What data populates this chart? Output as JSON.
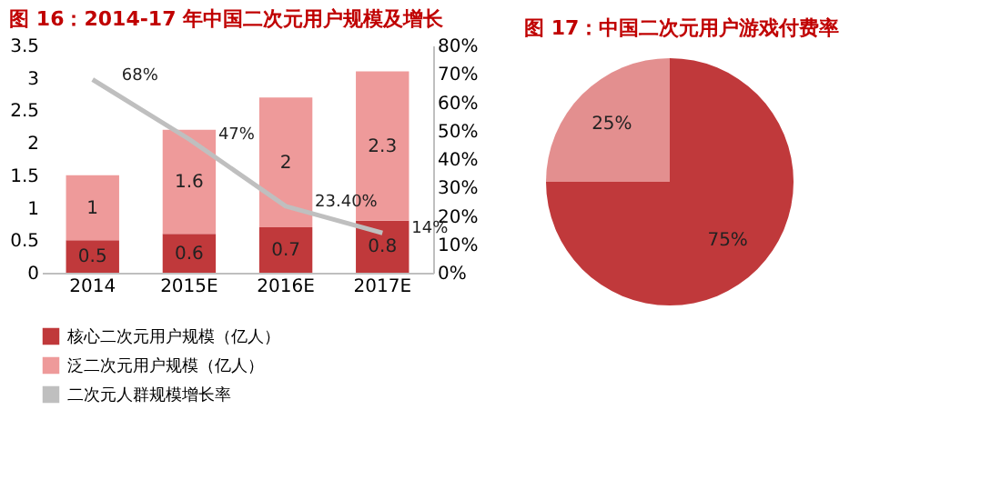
{
  "chart_data": [
    {
      "type": "bar",
      "title": "图 16：2014-17 年中国二次元用户规模及增长",
      "stacked": true,
      "data_labels": true,
      "legend": "bottom",
      "grid": false,
      "categories": [
        "2014",
        "2015E",
        "2016E",
        "2017E"
      ],
      "ylim": [
        0,
        3.5
      ],
      "yticks": [
        0,
        0.5,
        1,
        1.5,
        2,
        2.5,
        3,
        3.5
      ],
      "y2lim": [
        0,
        80
      ],
      "y2ticks": [
        {
          "value": 0,
          "label": "0%"
        },
        {
          "value": 10,
          "label": "10%"
        },
        {
          "value": 20,
          "label": "20%"
        },
        {
          "value": 30,
          "label": "30%"
        },
        {
          "value": 40,
          "label": "40%"
        },
        {
          "value": 50,
          "label": "50%"
        },
        {
          "value": 60,
          "label": "60%"
        },
        {
          "value": 70,
          "label": "70%"
        },
        {
          "value": 80,
          "label": "80%"
        }
      ],
      "series": [
        {
          "name": "核心二次元用户规模（亿人）",
          "color": "#c0393b",
          "values": [
            0.5,
            0.6,
            0.7,
            0.8
          ]
        },
        {
          "name": "泛二次元用户规模（亿人）",
          "color": "#ee9a9a",
          "values": [
            1,
            1.6,
            2,
            2.3
          ]
        },
        {
          "name": "二次元人群规模增长率",
          "type": "line",
          "axis": "y2",
          "color": "#bfbfbf",
          "values": [
            68,
            47,
            23.4,
            14
          ],
          "value_labels": [
            "68%",
            "47%",
            "23.40%",
            "14%"
          ]
        }
      ]
    },
    {
      "type": "pie",
      "title": "图 17：中国二次元用户游戏付费率",
      "legend": false,
      "categories": [
        null,
        null
      ],
      "values": [
        75,
        25
      ],
      "colors": [
        "#c0393b",
        "#e38f8f"
      ],
      "value_labels": [
        "75%",
        "25%"
      ]
    }
  ]
}
